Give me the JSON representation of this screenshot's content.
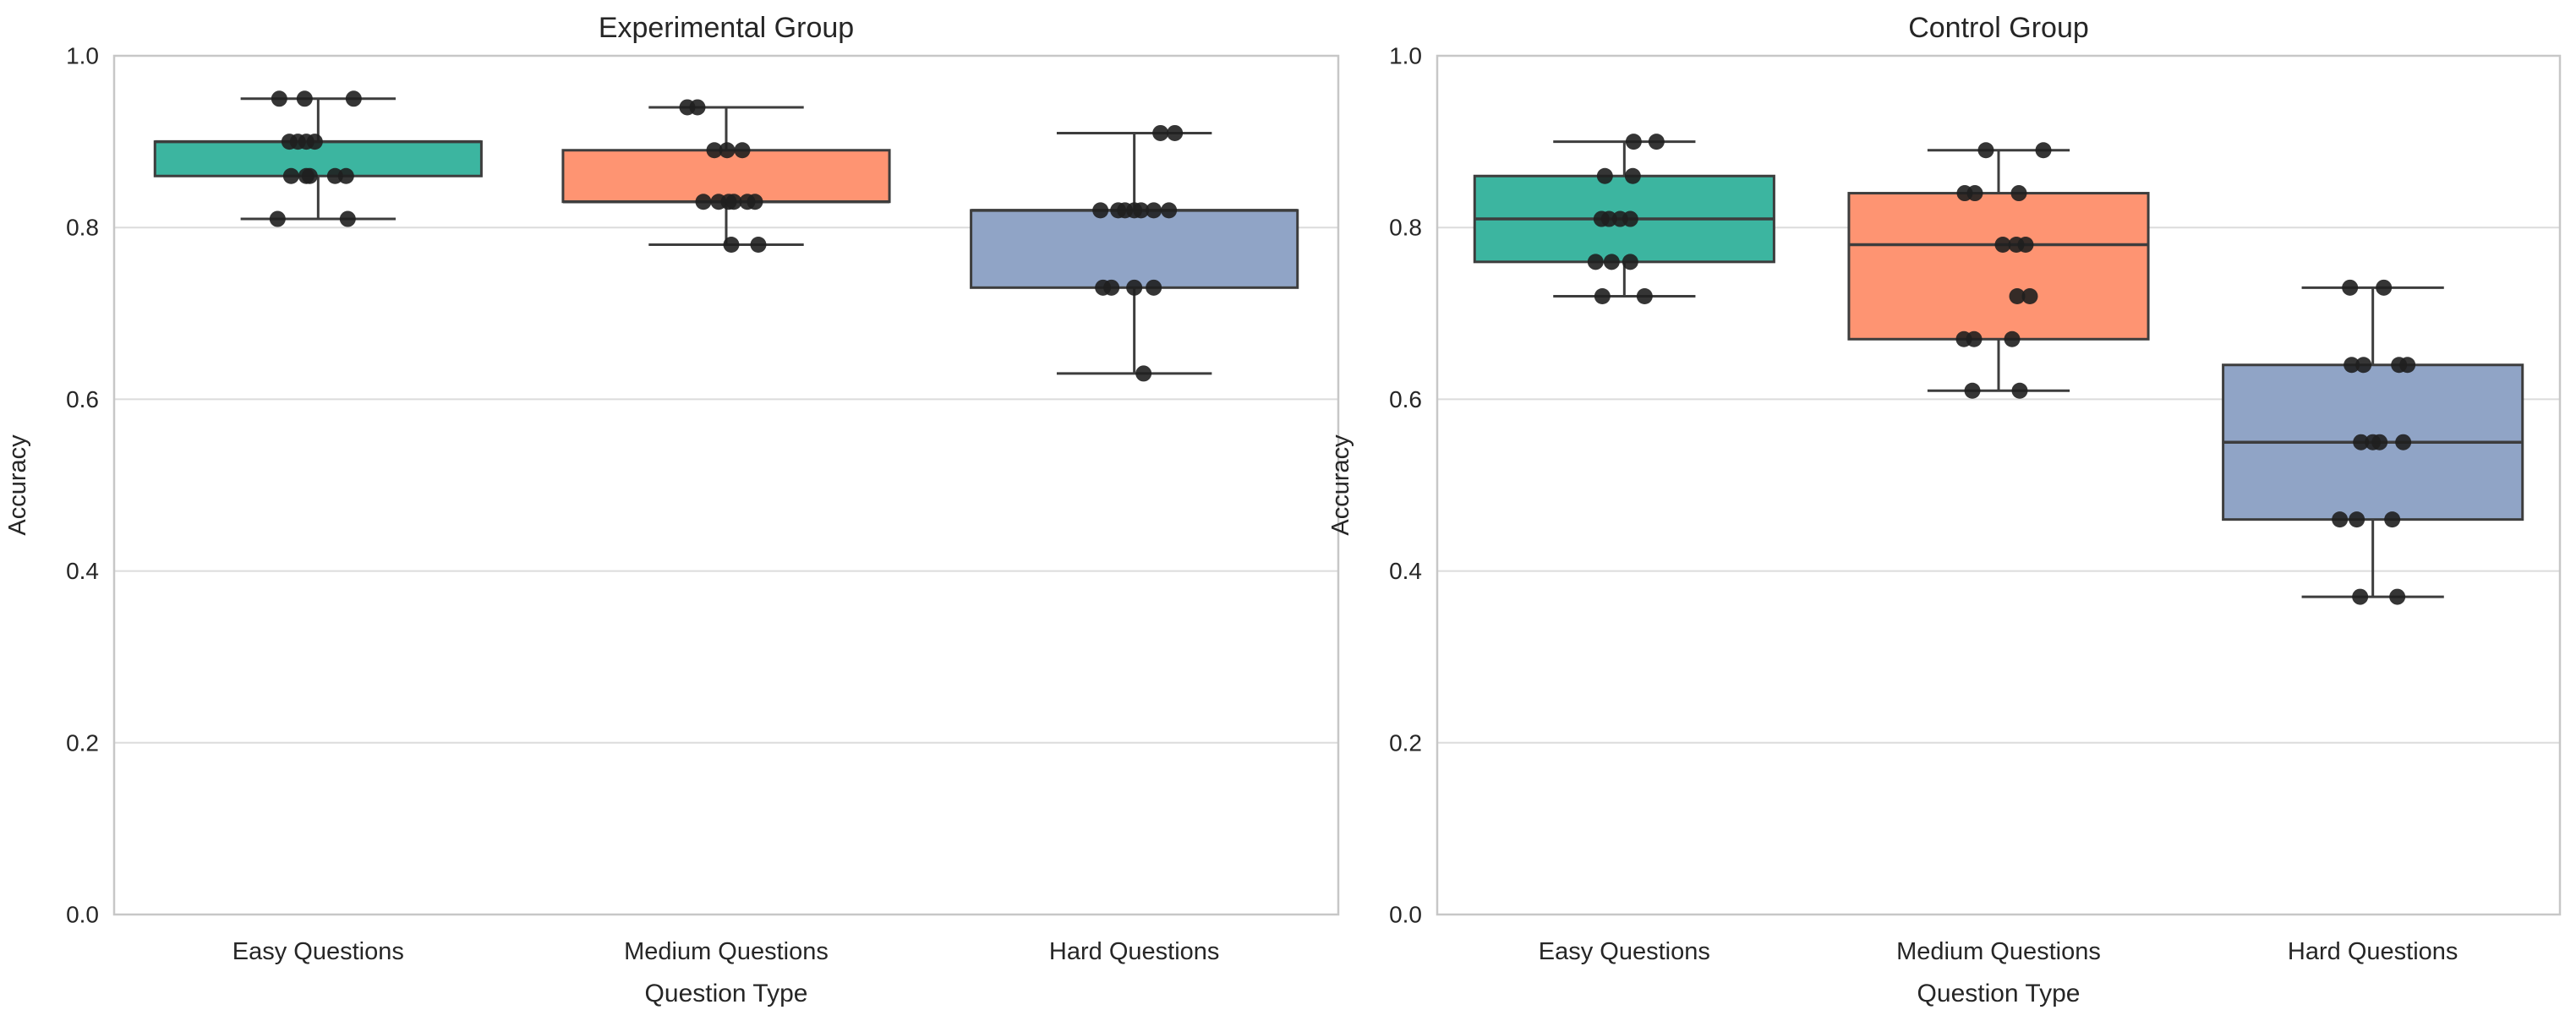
{
  "figure": {
    "background": "#ffffff",
    "text_color": "#262626",
    "grid_color": "#dcdcdc",
    "spine_color": "#c7c7c7",
    "box_edge_color": "#3d3d3d",
    "point_color": "#1f1f1f"
  },
  "chart_data": {
    "type": "boxplot",
    "layout": "two horizontal subplots, shared style, strip points overlaid on boxes",
    "xlabel": "Question Type",
    "ylabel": "Accuracy",
    "categories": [
      "Easy Questions",
      "Medium Questions",
      "Hard Questions"
    ],
    "ytick_labels": [
      "0.0",
      "0.2",
      "0.4",
      "0.6",
      "0.8",
      "1.0"
    ],
    "ytick_values": [
      0.0,
      0.2,
      0.4,
      0.6,
      0.8,
      1.0
    ],
    "ylim": [
      0.0,
      1.0
    ],
    "grid": true,
    "legend": false,
    "palette": {
      "easy": "#3cb5a0",
      "medium": "#fe9472",
      "hard": "#90a4c6"
    },
    "subplots": [
      {
        "title": "Experimental Group",
        "boxes": [
          {
            "category": "Easy Questions",
            "color_key": "easy",
            "whisker_low": 0.81,
            "q1": 0.86,
            "median": 0.9,
            "q3": 0.9,
            "whisker_high": 0.95,
            "points": [
              [
                -46,
                0.95
              ],
              [
                -16,
                0.95
              ],
              [
                42,
                0.95
              ],
              [
                -34,
                0.9
              ],
              [
                -24,
                0.9
              ],
              [
                -14,
                0.9
              ],
              [
                -4,
                0.9
              ],
              [
                -32,
                0.86
              ],
              [
                -14,
                0.86
              ],
              [
                -10,
                0.86
              ],
              [
                20,
                0.86
              ],
              [
                33,
                0.86
              ],
              [
                -48,
                0.81
              ],
              [
                35,
                0.81
              ]
            ]
          },
          {
            "category": "Medium Questions",
            "color_key": "medium",
            "whisker_low": 0.78,
            "q1": 0.83,
            "median": 0.83,
            "q3": 0.89,
            "whisker_high": 0.94,
            "points": [
              [
                -46,
                0.94
              ],
              [
                -34,
                0.94
              ],
              [
                -14,
                0.89
              ],
              [
                1,
                0.89
              ],
              [
                19,
                0.89
              ],
              [
                -27,
                0.83
              ],
              [
                -9,
                0.83
              ],
              [
                3,
                0.83
              ],
              [
                9,
                0.83
              ],
              [
                25,
                0.83
              ],
              [
                34,
                0.83
              ],
              [
                6,
                0.78
              ],
              [
                38,
                0.78
              ]
            ]
          },
          {
            "category": "Hard Questions",
            "color_key": "hard",
            "whisker_low": 0.63,
            "q1": 0.73,
            "median": 0.82,
            "q3": 0.82,
            "whisker_high": 0.91,
            "points": [
              [
                31,
                0.91
              ],
              [
                48,
                0.91
              ],
              [
                -40,
                0.82
              ],
              [
                -19,
                0.82
              ],
              [
                -11,
                0.82
              ],
              [
                0,
                0.82
              ],
              [
                8,
                0.82
              ],
              [
                23,
                0.82
              ],
              [
                41,
                0.82
              ],
              [
                -37,
                0.73
              ],
              [
                -27,
                0.73
              ],
              [
                0,
                0.73
              ],
              [
                23,
                0.73
              ],
              [
                11,
                0.63
              ]
            ]
          }
        ]
      },
      {
        "title": "Control Group",
        "boxes": [
          {
            "category": "Easy Questions",
            "color_key": "easy",
            "whisker_low": 0.72,
            "q1": 0.76,
            "median": 0.81,
            "q3": 0.86,
            "whisker_high": 0.9,
            "points": [
              [
                11,
                0.9
              ],
              [
                38,
                0.9
              ],
              [
                -23,
                0.86
              ],
              [
                10,
                0.86
              ],
              [
                -27,
                0.81
              ],
              [
                -18,
                0.81
              ],
              [
                -5,
                0.81
              ],
              [
                7,
                0.81
              ],
              [
                -34,
                0.76
              ],
              [
                -15,
                0.76
              ],
              [
                7,
                0.76
              ],
              [
                -26,
                0.72
              ],
              [
                24,
                0.72
              ]
            ]
          },
          {
            "category": "Medium Questions",
            "color_key": "medium",
            "whisker_low": 0.61,
            "q1": 0.67,
            "median": 0.78,
            "q3": 0.84,
            "whisker_high": 0.89,
            "points": [
              [
                -15,
                0.89
              ],
              [
                53,
                0.89
              ],
              [
                -40,
                0.84
              ],
              [
                -28,
                0.84
              ],
              [
                24,
                0.84
              ],
              [
                5,
                0.78
              ],
              [
                21,
                0.78
              ],
              [
                32,
                0.78
              ],
              [
                22,
                0.72
              ],
              [
                37,
                0.72
              ],
              [
                -41,
                0.67
              ],
              [
                -29,
                0.67
              ],
              [
                16,
                0.67
              ],
              [
                -31,
                0.61
              ],
              [
                25,
                0.61
              ]
            ]
          },
          {
            "category": "Hard Questions",
            "color_key": "hard",
            "whisker_low": 0.37,
            "q1": 0.46,
            "median": 0.55,
            "q3": 0.64,
            "whisker_high": 0.73,
            "points": [
              [
                -27,
                0.73
              ],
              [
                13,
                0.73
              ],
              [
                -25,
                0.64
              ],
              [
                -11,
                0.64
              ],
              [
                31,
                0.64
              ],
              [
                41,
                0.64
              ],
              [
                -14,
                0.55
              ],
              [
                0,
                0.55
              ],
              [
                8,
                0.55
              ],
              [
                36,
                0.55
              ],
              [
                -39,
                0.46
              ],
              [
                -19,
                0.46
              ],
              [
                23,
                0.46
              ],
              [
                -15,
                0.37
              ],
              [
                29,
                0.37
              ]
            ]
          }
        ]
      }
    ]
  }
}
